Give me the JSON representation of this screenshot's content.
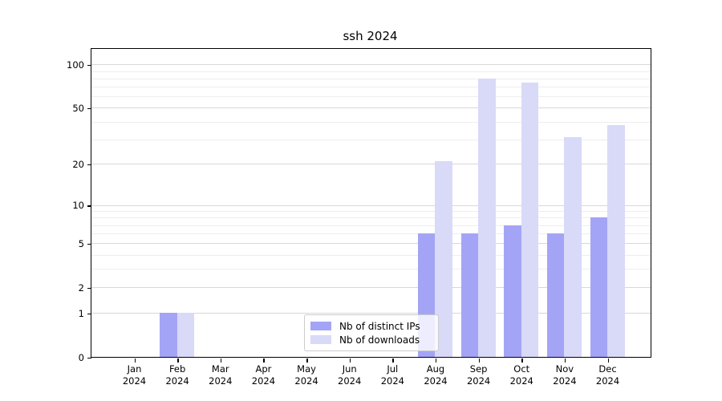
{
  "chart_data": {
    "type": "bar",
    "title": "ssh 2024",
    "categories": [
      "Jan",
      "Feb",
      "Mar",
      "Apr",
      "May",
      "Jun",
      "Jul",
      "Aug",
      "Sep",
      "Oct",
      "Nov",
      "Dec"
    ],
    "x_year_label": "2024",
    "series": [
      {
        "name": "Nb of distinct IPs",
        "color": "#a4a4f6",
        "values": [
          0,
          1,
          0,
          0,
          0,
          0,
          0,
          6,
          6,
          7,
          6,
          8
        ]
      },
      {
        "name": "Nb of downloads",
        "color": "#d9d9f8",
        "values": [
          0,
          1,
          0,
          0,
          0,
          0,
          0,
          21,
          80,
          75,
          31,
          38
        ]
      }
    ],
    "y_scale": "log1p",
    "ylim": [
      0,
      128
    ],
    "y_ticks": [
      0,
      1,
      2,
      5,
      10,
      20,
      50,
      100
    ],
    "y_tick_labels": [
      "0",
      "1",
      "2",
      "5",
      "10",
      "20",
      "50",
      "100"
    ],
    "y_minor_gridlines": [
      3,
      4,
      6,
      7,
      8,
      9,
      30,
      40,
      60,
      70,
      80,
      90
    ],
    "grid": true,
    "legend_position": "lower center"
  },
  "colors": {
    "grid_major": "#d8d8d8",
    "grid_minor": "#eeeeee",
    "axis": "#000000",
    "background": "#ffffff"
  }
}
